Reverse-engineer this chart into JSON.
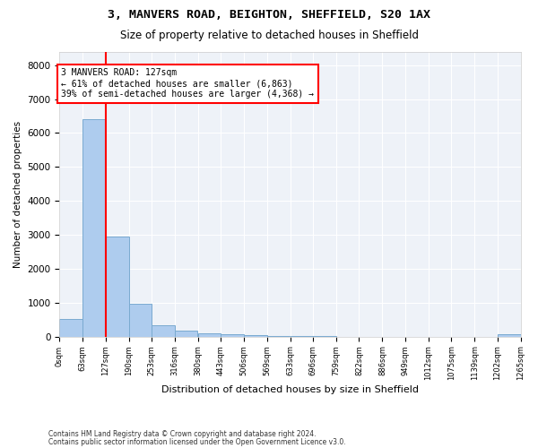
{
  "title1": "3, MANVERS ROAD, BEIGHTON, SHEFFIELD, S20 1AX",
  "title2": "Size of property relative to detached houses in Sheffield",
  "xlabel": "Distribution of detached houses by size in Sheffield",
  "ylabel": "Number of detached properties",
  "bar_color": "#aeccee",
  "bar_edge_color": "#7aaad0",
  "annotation_line_color": "red",
  "property_size": 127,
  "annotation_text": "3 MANVERS ROAD: 127sqm\n← 61% of detached houses are smaller (6,863)\n39% of semi-detached houses are larger (4,368) →",
  "bin_edges": [
    0,
    63,
    127,
    190,
    253,
    316,
    380,
    443,
    506,
    569,
    633,
    696,
    759,
    822,
    886,
    949,
    1012,
    1075,
    1139,
    1202,
    1265
  ],
  "bar_heights": [
    530,
    6400,
    2940,
    970,
    340,
    175,
    90,
    60,
    40,
    20,
    20,
    10,
    5,
    5,
    5,
    5,
    5,
    5,
    5,
    80
  ],
  "ylim": [
    0,
    8400
  ],
  "yticks": [
    0,
    1000,
    2000,
    3000,
    4000,
    5000,
    6000,
    7000,
    8000
  ],
  "footer1": "Contains HM Land Registry data © Crown copyright and database right 2024.",
  "footer2": "Contains public sector information licensed under the Open Government Licence v3.0.",
  "plot_bg_color": "#eef2f8",
  "fig_bg_color": "#ffffff",
  "grid_color": "#ffffff",
  "title1_fontsize": 9.5,
  "title2_fontsize": 8.5,
  "ylabel_fontsize": 7.5,
  "xlabel_fontsize": 8,
  "ytick_fontsize": 7.5,
  "xtick_fontsize": 6,
  "footer_fontsize": 5.5
}
